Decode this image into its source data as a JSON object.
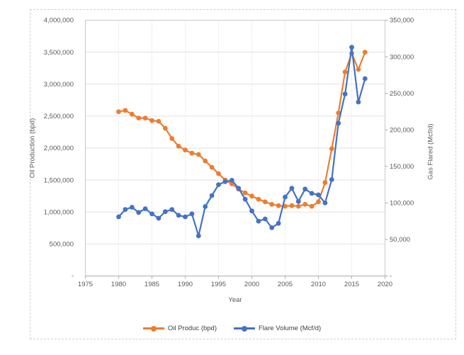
{
  "figure": {
    "background": "#ffffff",
    "border_color": "#cfcfcf"
  },
  "styles": {
    "h_grid_color": "#e2e2e2",
    "v_grid_color": "#d4d4d4",
    "plot_border_color": "#c9c9c9",
    "axis_line_color": "#adadad",
    "tick_text_color": "#595959",
    "oil_color": "#ED7D31",
    "flare_color": "#4472C4"
  },
  "chart_data": {
    "type": "line",
    "title": "",
    "xlabel": "Year",
    "ylabel_left": "Oil Production (bpd)",
    "ylabel_right": "Gas Flared (Mcf/d)",
    "xlim": [
      1975,
      2020
    ],
    "ylim_left": [
      0,
      4000000
    ],
    "ylim_right": [
      0,
      350000
    ],
    "grid": true,
    "legend_position": "bottom",
    "x": [
      1980,
      1981,
      1982,
      1983,
      1984,
      1985,
      1986,
      1987,
      1988,
      1989,
      1990,
      1991,
      1992,
      1993,
      1994,
      1995,
      1996,
      1997,
      1998,
      1999,
      2000,
      2001,
      2002,
      2003,
      2004,
      2005,
      2006,
      2007,
      2008,
      2009,
      2010,
      2011,
      2012,
      2013,
      2014,
      2015,
      2016,
      2017
    ],
    "series": [
      {
        "name": "Oil Produc (bpd)",
        "axis": "left",
        "color": "#ED7D31",
        "marker": "circle",
        "values": [
          2570000,
          2590000,
          2530000,
          2470000,
          2470000,
          2430000,
          2420000,
          2310000,
          2150000,
          2030000,
          1970000,
          1920000,
          1900000,
          1800000,
          1700000,
          1600000,
          1500000,
          1440000,
          1360000,
          1300000,
          1250000,
          1200000,
          1160000,
          1120000,
          1100000,
          1090000,
          1100000,
          1090000,
          1120000,
          1090000,
          1160000,
          1460000,
          1990000,
          2550000,
          3190000,
          3480000,
          3230000,
          3500000
        ]
      },
      {
        "name": "Flare Volume (Mcf/d)",
        "axis": "right",
        "color": "#4472C4",
        "marker": "circle",
        "values": [
          81000,
          91000,
          94000,
          87000,
          92000,
          85000,
          79000,
          88000,
          91000,
          83000,
          81000,
          85000,
          55000,
          95000,
          110000,
          125000,
          129000,
          131000,
          120000,
          105000,
          89000,
          75000,
          78000,
          66000,
          72000,
          108000,
          120000,
          102000,
          119000,
          113000,
          111000,
          100000,
          132000,
          209000,
          249000,
          313000,
          238000,
          270000
        ]
      }
    ],
    "xticks": {
      "values": [
        1975,
        1980,
        1985,
        1990,
        1995,
        2000,
        2005,
        2010,
        2015,
        2020
      ],
      "labels": [
        "1975",
        "1980",
        "1985",
        "1990",
        "1995",
        "2000",
        "2005",
        "2010",
        "2015",
        "2020"
      ]
    },
    "yticks_left": {
      "values": [
        0,
        500000,
        1000000,
        1500000,
        2000000,
        2500000,
        3000000,
        3500000,
        4000000
      ],
      "labels": [
        "-",
        "500,000",
        "1,000,000",
        "1,500,000",
        "2,000,000",
        "2,500,000",
        "3,000,000",
        "3,500,000",
        "4,000,000"
      ]
    },
    "yticks_right": {
      "values": [
        0,
        50000,
        100000,
        150000,
        200000,
        250000,
        300000,
        350000
      ],
      "labels": [
        "-",
        "50,000",
        "100,000",
        "150,000",
        "200,000",
        "250,000",
        "300,000",
        "350,000"
      ]
    }
  },
  "legend": {
    "items": [
      {
        "label": "Oil Produc (bpd)",
        "color": "#ED7D31"
      },
      {
        "label": "Flare Volume (Mcf/d)",
        "color": "#4472C4"
      }
    ]
  }
}
